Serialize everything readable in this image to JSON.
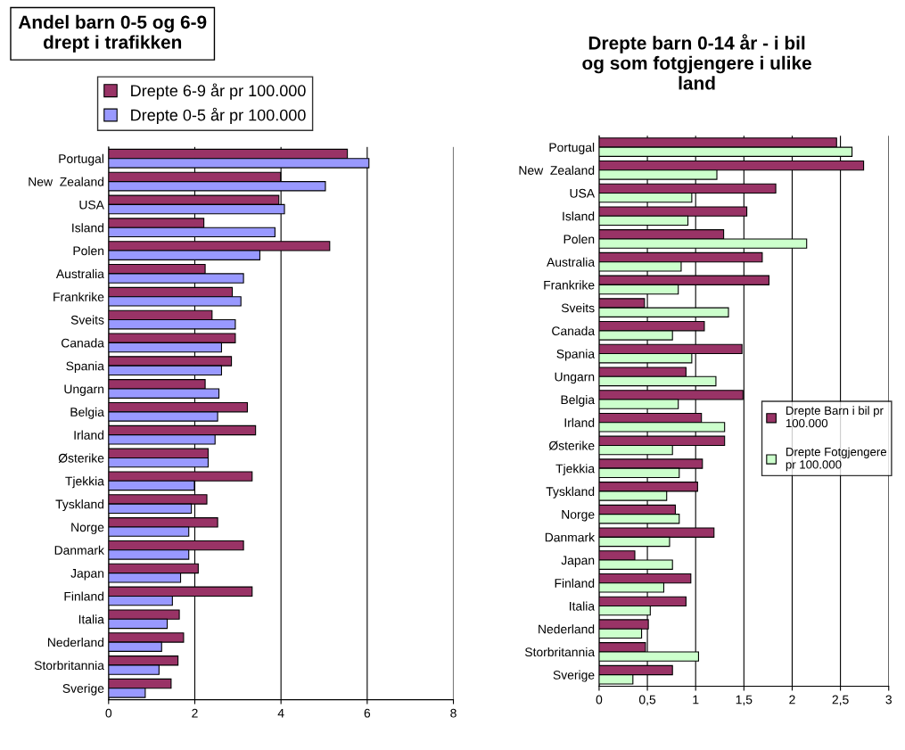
{
  "chart_data": [
    {
      "type": "bar",
      "orientation": "horizontal",
      "title": "Andel barn 0-5 og 6-9\ndrept i trafikken",
      "categories": [
        "Portugal",
        "New  Zealand",
        "USA",
        "Island",
        "Polen",
        "Australia",
        "Frankrike",
        "Sveits",
        "Canada",
        "Spania",
        "Ungarn",
        "Belgia",
        "Irland",
        "Østerike",
        "Tjekkia",
        "Tyskland",
        "Norge",
        "Danmark",
        "Japan",
        "Finland",
        "Italia",
        "Nederland",
        "Storbritannia",
        "Sverige"
      ],
      "series": [
        {
          "name": "Drepte 6-9 år pr 100.000",
          "color": "#993366",
          "values": [
            5.54,
            3.99,
            3.95,
            2.21,
            5.13,
            2.24,
            2.87,
            2.4,
            2.94,
            2.85,
            2.24,
            3.22,
            3.41,
            2.31,
            3.33,
            2.28,
            2.53,
            3.13,
            2.08,
            3.33,
            1.64,
            1.74,
            1.61,
            1.45
          ]
        },
        {
          "name": "Drepte 0-5 år pr 100.000",
          "color": "#9999ff",
          "values": [
            6.04,
            5.03,
            4.08,
            3.86,
            3.51,
            3.13,
            3.07,
            2.94,
            2.62,
            2.62,
            2.56,
            2.53,
            2.47,
            2.31,
            1.99,
            1.92,
            1.86,
            1.86,
            1.67,
            1.48,
            1.36,
            1.23,
            1.17,
            0.85
          ]
        }
      ],
      "xlim": [
        0,
        8
      ],
      "xticks": [
        0,
        2,
        4,
        6,
        8
      ],
      "grid": "x",
      "legend": "top"
    },
    {
      "type": "bar",
      "orientation": "horizontal",
      "title": "Drepte barn 0-14 år - i bil\nog som fotgjengere i ulike\nland",
      "categories": [
        "Portugal",
        "New  Zealand",
        "USA",
        "Island",
        "Polen",
        "Australia",
        "Frankrike",
        "Sveits",
        "Canada",
        "Spania",
        "Ungarn",
        "Belgia",
        "Irland",
        "Østerike",
        "Tjekkia",
        "Tyskland",
        "Norge",
        "Danmark",
        "Japan",
        "Finland",
        "Italia",
        "Nederland",
        "Storbritannia",
        "Sverige"
      ],
      "series": [
        {
          "name": "Drepte Barn i bil pr 100.000",
          "color": "#993366",
          "values": [
            2.46,
            2.74,
            1.83,
            1.53,
            1.29,
            1.69,
            1.76,
            0.47,
            1.09,
            1.48,
            0.9,
            1.49,
            1.06,
            1.3,
            1.07,
            1.02,
            0.79,
            1.19,
            0.37,
            0.95,
            0.9,
            0.51,
            0.48,
            0.76
          ]
        },
        {
          "name": "Drepte Fotgjengere pr 100.000",
          "color": "#ccffcc",
          "values": [
            2.62,
            1.22,
            0.96,
            0.92,
            2.15,
            0.85,
            0.82,
            1.34,
            0.76,
            0.96,
            1.21,
            0.82,
            1.3,
            0.76,
            0.83,
            0.7,
            0.83,
            0.73,
            0.76,
            0.67,
            0.53,
            0.44,
            1.03,
            0.35
          ]
        }
      ],
      "xlim": [
        0,
        3
      ],
      "xticks": [
        0,
        {
          "value": 0.5,
          "label": "0,5"
        },
        1,
        {
          "value": 1.5,
          "label": "1,5"
        },
        2,
        {
          "value": 2.5,
          "label": "2,5"
        },
        3
      ],
      "grid": "x",
      "legend": "right"
    }
  ]
}
